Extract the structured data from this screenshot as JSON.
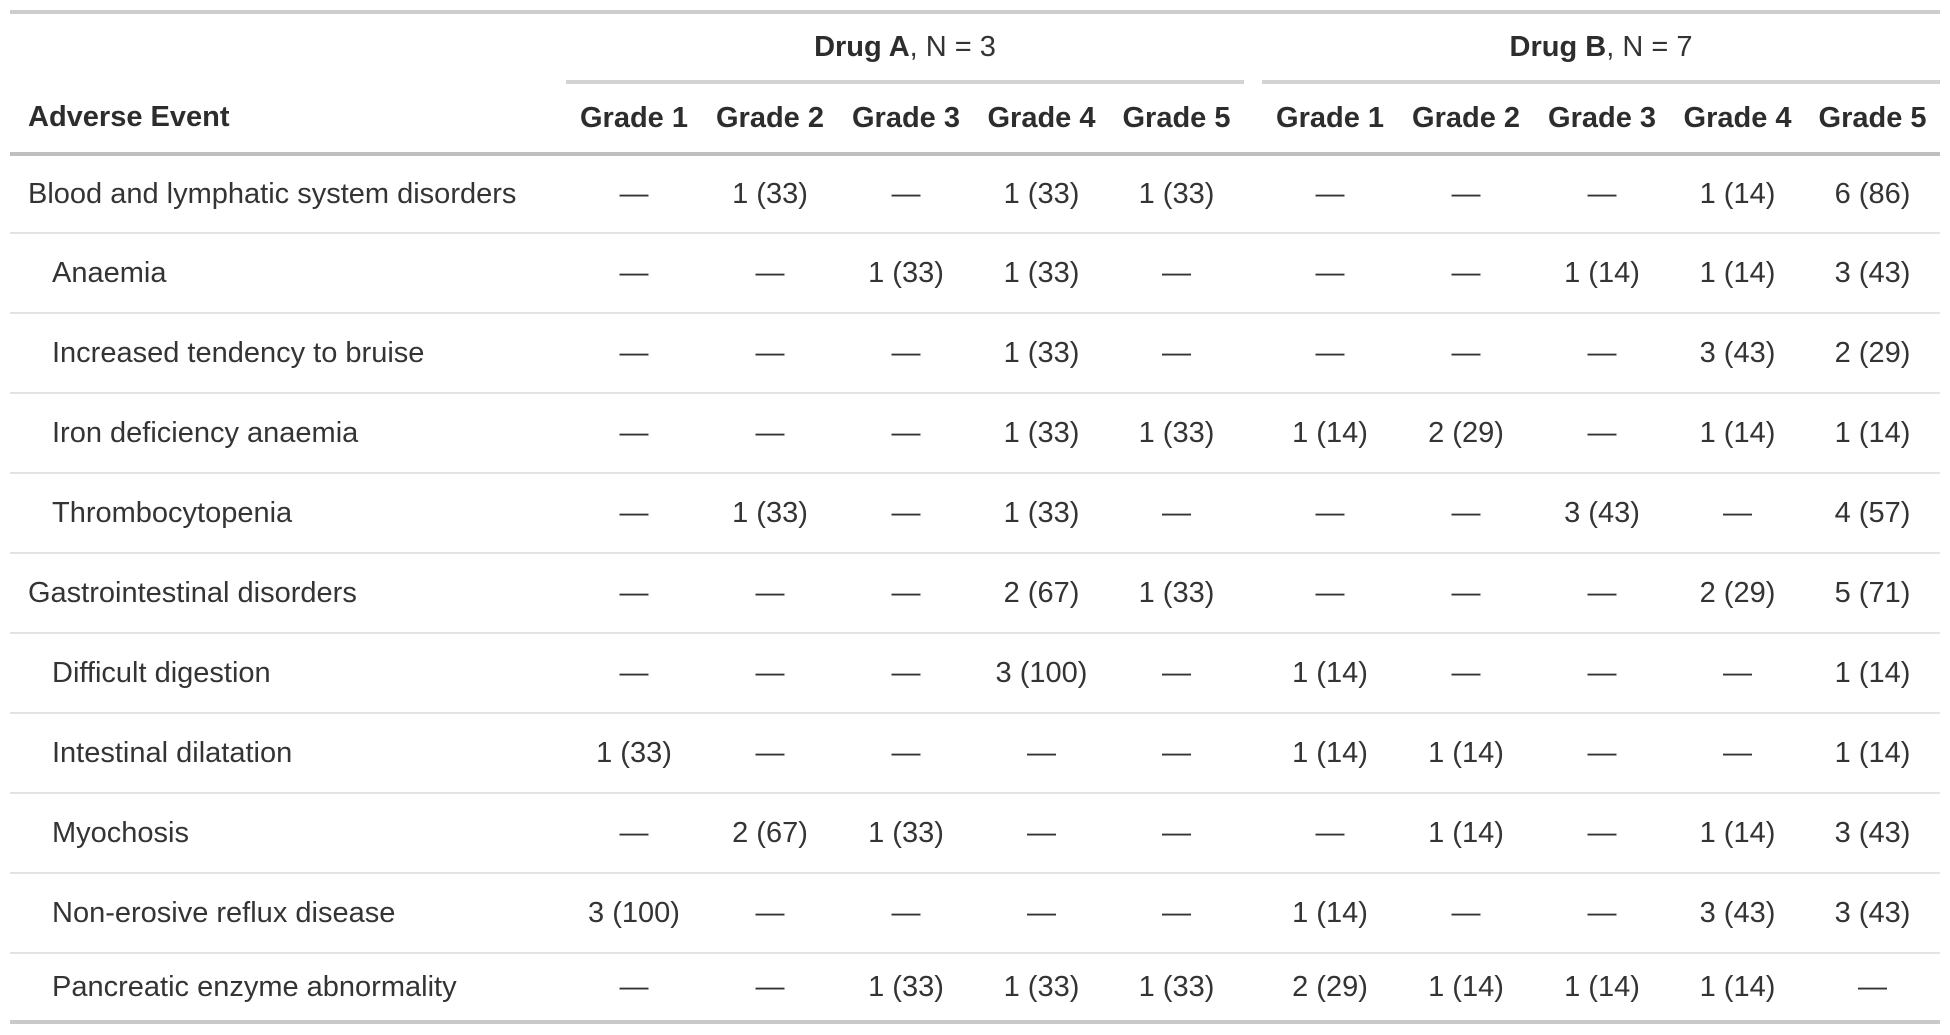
{
  "title": "Adverse events by grade summary table",
  "colors": {
    "text": "#343434",
    "header_text": "#2d2d2d",
    "top_rule": "#cdcdcd",
    "group_rule": "#d3d3d3",
    "header_rule": "#bfbfbf",
    "row_rule": "#e3e3e3",
    "bottom_rule": "#c9c9c9"
  },
  "table": {
    "row_header": "Adverse Event",
    "empty_marker": "—",
    "groups": [
      {
        "label_bold": "Drug A",
        "label_rest": ", N = 3",
        "columns": [
          "Grade 1",
          "Grade 2",
          "Grade 3",
          "Grade 4",
          "Grade 5"
        ]
      },
      {
        "label_bold": "Drug B",
        "label_rest": ", N = 7",
        "columns": [
          "Grade 1",
          "Grade 2",
          "Grade 3",
          "Grade 4",
          "Grade 5"
        ]
      }
    ],
    "rows": [
      {
        "label": "Blood and lymphatic system disorders",
        "indent": false,
        "a": [
          "—",
          "1 (33)",
          "—",
          "1 (33)",
          "1 (33)"
        ],
        "b": [
          "—",
          "—",
          "—",
          "1 (14)",
          "6 (86)"
        ]
      },
      {
        "label": "Anaemia",
        "indent": true,
        "a": [
          "—",
          "—",
          "1 (33)",
          "1 (33)",
          "—"
        ],
        "b": [
          "—",
          "—",
          "1 (14)",
          "1 (14)",
          "3 (43)"
        ]
      },
      {
        "label": "Increased tendency to bruise",
        "indent": true,
        "a": [
          "—",
          "—",
          "—",
          "1 (33)",
          "—"
        ],
        "b": [
          "—",
          "—",
          "—",
          "3 (43)",
          "2 (29)"
        ]
      },
      {
        "label": "Iron deficiency anaemia",
        "indent": true,
        "a": [
          "—",
          "—",
          "—",
          "1 (33)",
          "1 (33)"
        ],
        "b": [
          "1 (14)",
          "2 (29)",
          "—",
          "1 (14)",
          "1 (14)"
        ]
      },
      {
        "label": "Thrombocytopenia",
        "indent": true,
        "a": [
          "—",
          "1 (33)",
          "—",
          "1 (33)",
          "—"
        ],
        "b": [
          "—",
          "—",
          "3 (43)",
          "—",
          "4 (57)"
        ]
      },
      {
        "label": "Gastrointestinal disorders",
        "indent": false,
        "a": [
          "—",
          "—",
          "—",
          "2 (67)",
          "1 (33)"
        ],
        "b": [
          "—",
          "—",
          "—",
          "2 (29)",
          "5 (71)"
        ]
      },
      {
        "label": "Difficult digestion",
        "indent": true,
        "a": [
          "—",
          "—",
          "—",
          "3 (100)",
          "—"
        ],
        "b": [
          "1 (14)",
          "—",
          "—",
          "—",
          "1 (14)"
        ]
      },
      {
        "label": "Intestinal dilatation",
        "indent": true,
        "a": [
          "1 (33)",
          "—",
          "—",
          "—",
          "—"
        ],
        "b": [
          "1 (14)",
          "1 (14)",
          "—",
          "—",
          "1 (14)"
        ]
      },
      {
        "label": "Myochosis",
        "indent": true,
        "a": [
          "—",
          "2 (67)",
          "1 (33)",
          "—",
          "—"
        ],
        "b": [
          "—",
          "1 (14)",
          "—",
          "1 (14)",
          "3 (43)"
        ]
      },
      {
        "label": "Non-erosive reflux disease",
        "indent": true,
        "a": [
          "3 (100)",
          "—",
          "—",
          "—",
          "—"
        ],
        "b": [
          "1 (14)",
          "—",
          "—",
          "3 (43)",
          "3 (43)"
        ]
      },
      {
        "label": "Pancreatic enzyme abnormality",
        "indent": true,
        "a": [
          "—",
          "—",
          "1 (33)",
          "1 (33)",
          "1 (33)"
        ],
        "b": [
          "2 (29)",
          "1 (14)",
          "1 (14)",
          "1 (14)",
          "—"
        ]
      }
    ]
  }
}
